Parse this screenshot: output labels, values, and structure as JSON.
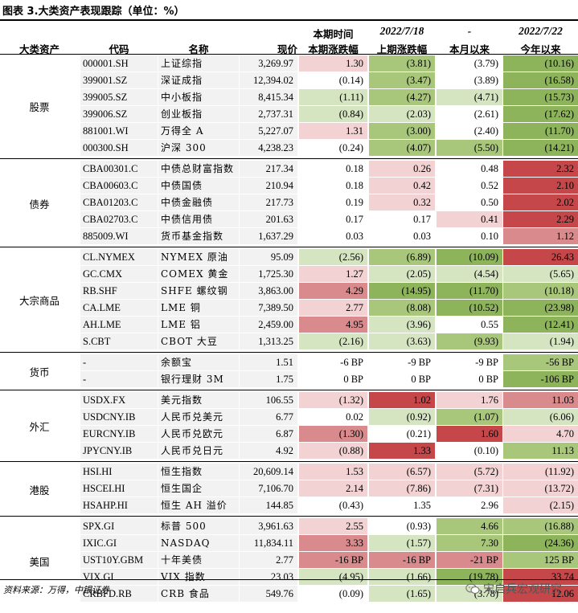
{
  "title": "图表 3.大类资产表现跟踪（单位：%）",
  "headers": {
    "date_top_1": "本期时间",
    "date_top_2": "2022/7/18",
    "date_top_3": "-",
    "date_top_4": "2022/7/22",
    "col_asset": "大类资产",
    "col_code": "代码",
    "col_name": "名称",
    "col_price": "现价",
    "col_week": "本期涨跌幅",
    "col_prev": "上期涨跌幅",
    "col_month": "本月以来",
    "col_ytd": "今年以来"
  },
  "colors": {
    "green_dark": "#8db45a",
    "green_mid": "#a9c77b",
    "green_light": "#d6e5c1",
    "red_dark": "#c5474a",
    "red_mid": "#d88a8c",
    "red_light": "#f2d2d3"
  },
  "groups": [
    {
      "name": "股票",
      "rows": [
        {
          "code": "000001.SH",
          "name": "上证综指",
          "price": "3,269.97",
          "week": "1.30",
          "prev": "(3.81)",
          "month": "(3.79)",
          "ytd": "(10.16)",
          "c": [
            "rl",
            "gm",
            "",
            "gd"
          ]
        },
        {
          "code": "399001.SZ",
          "name": "深证成指",
          "price": "12,394.02",
          "week": "(0.14)",
          "prev": "(3.47)",
          "month": "(3.89)",
          "ytd": "(16.58)",
          "c": [
            "",
            "gm",
            "",
            "gd"
          ]
        },
        {
          "code": "399005.SZ",
          "name": "中小板指",
          "price": "8,415.34",
          "week": "(1.11)",
          "prev": "(4.27)",
          "month": "(4.71)",
          "ytd": "(15.73)",
          "c": [
            "gl",
            "gm",
            "gl",
            "gd"
          ]
        },
        {
          "code": "399006.SZ",
          "name": "创业板指",
          "price": "2,737.31",
          "week": "(0.84)",
          "prev": "(2.03)",
          "month": "(2.61)",
          "ytd": "(17.62)",
          "c": [
            "gl",
            "gl",
            "",
            "gd"
          ]
        },
        {
          "code": "881001.WI",
          "name": "万得全 A",
          "price": "5,227.07",
          "week": "1.31",
          "prev": "(3.00)",
          "month": "(2.40)",
          "ytd": "(11.70)",
          "c": [
            "rl",
            "gm",
            "",
            "gd"
          ]
        },
        {
          "code": "000300.SH",
          "name": "沪深 300",
          "price": "4,238.23",
          "week": "(0.24)",
          "prev": "(4.07)",
          "month": "(5.50)",
          "ytd": "(14.21)",
          "c": [
            "",
            "gm",
            "gm",
            "gd"
          ]
        }
      ]
    },
    {
      "name": "债券",
      "rows": [
        {
          "code": "CBA00301.C",
          "name": "中债总财富指数",
          "price": "217.34",
          "week": "0.18",
          "prev": "0.26",
          "month": "0.48",
          "ytd": "2.32",
          "c": [
            "",
            "rl",
            "",
            "rd"
          ]
        },
        {
          "code": "CBA00603.C",
          "name": "中债国债",
          "price": "210.94",
          "week": "0.18",
          "prev": "0.42",
          "month": "0.52",
          "ytd": "2.10",
          "c": [
            "",
            "rl",
            "",
            "rd"
          ]
        },
        {
          "code": "CBA01203.C",
          "name": "中债金融债",
          "price": "217.73",
          "week": "0.19",
          "prev": "0.32",
          "month": "0.50",
          "ytd": "2.02",
          "c": [
            "",
            "rl",
            "",
            "rd"
          ]
        },
        {
          "code": "CBA02703.C",
          "name": "中债信用债",
          "price": "201.63",
          "week": "0.17",
          "prev": "0.17",
          "month": "0.41",
          "ytd": "2.29",
          "c": [
            "",
            "",
            "rl",
            "rd"
          ]
        },
        {
          "code": "885009.WI",
          "name": "货币基金指数",
          "price": "1,637.29",
          "week": "0.03",
          "prev": "0.03",
          "month": "0.10",
          "ytd": "1.12",
          "c": [
            "",
            "",
            "",
            "rm"
          ]
        }
      ]
    },
    {
      "name": "大宗商品",
      "rows": [
        {
          "code": "CL.NYMEX",
          "name": "NYMEX 原油",
          "price": "95.09",
          "week": "(2.56)",
          "prev": "(6.89)",
          "month": "(10.09)",
          "ytd": "26.43",
          "c": [
            "gl",
            "gm",
            "gd",
            "rd"
          ]
        },
        {
          "code": "GC.CMX",
          "name": "COMEX 黄金",
          "price": "1,725.30",
          "week": "1.27",
          "prev": "(2.05)",
          "month": "(4.54)",
          "ytd": "(5.65)",
          "c": [
            "rl",
            "gl",
            "gl",
            "gl"
          ]
        },
        {
          "code": "RB.SHF",
          "name": "SHFE 螺纹钢",
          "price": "3,863.00",
          "week": "4.29",
          "prev": "(14.95)",
          "month": "(11.70)",
          "ytd": "(10.18)",
          "c": [
            "rm",
            "gd",
            "gd",
            "gm"
          ]
        },
        {
          "code": "CA.LME",
          "name": "LME 铜",
          "price": "7,389.50",
          "week": "2.77",
          "prev": "(8.08)",
          "month": "(10.52)",
          "ytd": "(23.98)",
          "c": [
            "rl",
            "gm",
            "gd",
            "gd"
          ]
        },
        {
          "code": "AH.LME",
          "name": "LME 铝",
          "price": "2,459.00",
          "week": "4.95",
          "prev": "(3.96)",
          "month": "0.55",
          "ytd": "(12.41)",
          "c": [
            "rm",
            "gl",
            "",
            "gd"
          ]
        },
        {
          "code": "S.CBT",
          "name": "CBOT 大豆",
          "price": "1,313.25",
          "week": "(2.16)",
          "prev": "(3.63)",
          "month": "(9.93)",
          "ytd": "(1.94)",
          "c": [
            "gl",
            "gl",
            "gm",
            "gl"
          ]
        }
      ]
    },
    {
      "name": "货币",
      "rows": [
        {
          "code": "-",
          "name": "余额宝",
          "price": "1.51",
          "week": "-6 BP",
          "prev": "-9 BP",
          "month": "-9 BP",
          "ytd": "-56 BP",
          "c": [
            "",
            "",
            "",
            "gm"
          ]
        },
        {
          "code": "-",
          "name": "银行理财 3M",
          "price": "1.75",
          "week": "0 BP",
          "prev": "0 BP",
          "month": "0 BP",
          "ytd": "-106 BP",
          "c": [
            "",
            "",
            "",
            "gd"
          ]
        }
      ]
    },
    {
      "name": "外汇",
      "rows": [
        {
          "code": "USDX.FX",
          "name": "美元指数",
          "price": "106.55",
          "week": "(1.32)",
          "prev": "1.02",
          "month": "1.76",
          "ytd": "11.03",
          "c": [
            "rl",
            "rd",
            "rl",
            "rm"
          ]
        },
        {
          "code": "USDCNY.IB",
          "name": "人民币兑美元",
          "price": "6.77",
          "week": "0.02",
          "prev": "(0.92)",
          "month": "(1.07)",
          "ytd": "(6.06)",
          "c": [
            "",
            "gl",
            "gm",
            "gl"
          ]
        },
        {
          "code": "EURCNY.IB",
          "name": "人民币兑欧元",
          "price": "6.87",
          "week": "(1.30)",
          "prev": "(0.21)",
          "month": "1.60",
          "ytd": "4.70",
          "c": [
            "rm",
            "",
            "rd",
            "rl"
          ]
        },
        {
          "code": "JPYCNY.IB",
          "name": "人民币兑日元",
          "price": "4.92",
          "week": "(0.88)",
          "prev": "1.33",
          "month": "(0.10)",
          "ytd": "11.13",
          "c": [
            "rl",
            "rd",
            "",
            "gm"
          ]
        }
      ]
    },
    {
      "name": "港股",
      "rows": [
        {
          "code": "HSI.HI",
          "name": "恒生指数",
          "price": "20,609.14",
          "week": "1.53",
          "prev": "(6.57)",
          "month": "(5.72)",
          "ytd": "(11.92)",
          "c": [
            "rl",
            "rl",
            "rl",
            "rl"
          ]
        },
        {
          "code": "HSCEI.HI",
          "name": "恒生国企",
          "price": "7,106.70",
          "week": "2.14",
          "prev": "(7.86)",
          "month": "(7.31)",
          "ytd": "(13.72)",
          "c": [
            "rl",
            "rl",
            "rl",
            "rl"
          ]
        },
        {
          "code": "HSAHP.HI",
          "name": "恒生 AH 溢价",
          "price": "144.85",
          "week": "(0.43)",
          "prev": "1.35",
          "month": "2.96",
          "ytd": "(2.15)",
          "c": [
            "",
            "",
            "",
            "rl"
          ]
        }
      ]
    },
    {
      "name": "美国",
      "rows": [
        {
          "code": "SPX.GI",
          "name": "标普 500",
          "price": "3,961.63",
          "week": "2.55",
          "prev": "(0.93)",
          "month": "4.66",
          "ytd": "(16.88)",
          "c": [
            "rl",
            "",
            "gm",
            "gm"
          ]
        },
        {
          "code": "IXIC.GI",
          "name": "NASDAQ",
          "price": "11,834.11",
          "week": "3.33",
          "prev": "(1.57)",
          "month": "7.30",
          "ytd": "(24.36)",
          "c": [
            "rm",
            "gl",
            "gm",
            "gd"
          ]
        },
        {
          "code": "UST10Y.GBM",
          "name": "十年美债",
          "price": "2.77",
          "week": "-16 BP",
          "prev": "-16 BP",
          "month": "-21 BP",
          "ytd": "125 BP",
          "c": [
            "rm",
            "rm",
            "rm",
            "gm"
          ]
        },
        {
          "code": "VIX.GI",
          "name": "VIX 指数",
          "price": "23.03",
          "week": "(4.95)",
          "prev": "(1.66)",
          "month": "(19.78)",
          "ytd": "33.74",
          "c": [
            "gl",
            "gl",
            "gd",
            "rd"
          ]
        },
        {
          "code": "CRBFD.RB",
          "name": "CRB 食品",
          "price": "549.76",
          "week": "(0.09)",
          "prev": "(1.65)",
          "month": "(3.78)",
          "ytd": "12.06",
          "c": [
            "",
            "gl",
            "gl",
            "rd"
          ]
        }
      ]
    }
  ],
  "source": "资料来源：万得，中银证券",
  "watermark": "宋启兵宏观研究",
  "icons": {
    "watermark_icon": "wechat-icon"
  }
}
